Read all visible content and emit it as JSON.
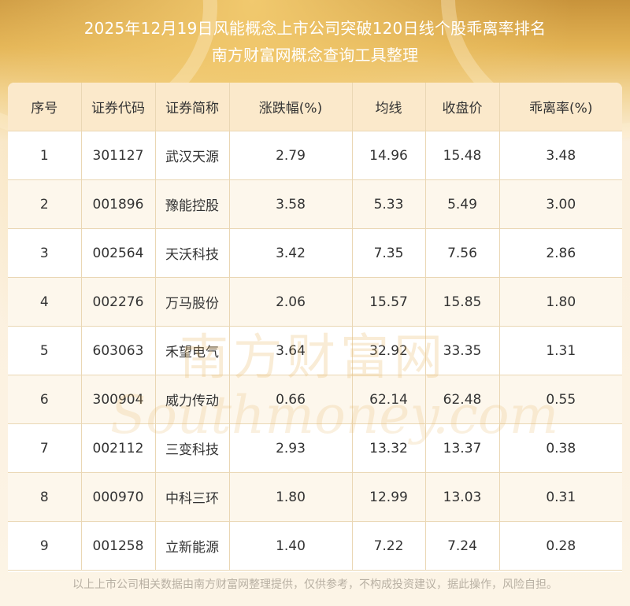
{
  "title_line1": "2025年12月19日风能概念上市公司突破120日线个股乖离率排名",
  "title_line2": "南方财富网概念查询工具整理",
  "table": {
    "headers": [
      "序号",
      "证券代码",
      "证券简称",
      "涨跌幅(%)",
      "均线",
      "收盘价",
      "乖离率(%)"
    ],
    "rows": [
      [
        "1",
        "301127",
        "武汉天源",
        "2.79",
        "14.96",
        "15.48",
        "3.48"
      ],
      [
        "2",
        "001896",
        "豫能控股",
        "3.58",
        "5.33",
        "5.49",
        "3.00"
      ],
      [
        "3",
        "002564",
        "天沃科技",
        "3.42",
        "7.35",
        "7.56",
        "2.86"
      ],
      [
        "4",
        "002276",
        "万马股份",
        "2.06",
        "15.57",
        "15.85",
        "1.80"
      ],
      [
        "5",
        "603063",
        "禾望电气",
        "3.64",
        "32.92",
        "33.35",
        "1.31"
      ],
      [
        "6",
        "300904",
        "威力传动",
        "0.66",
        "62.14",
        "62.48",
        "0.55"
      ],
      [
        "7",
        "002112",
        "三变科技",
        "2.93",
        "13.32",
        "13.37",
        "0.38"
      ],
      [
        "8",
        "000970",
        "中科三环",
        "1.80",
        "12.99",
        "13.03",
        "0.31"
      ],
      [
        "9",
        "001258",
        "立新能源",
        "1.40",
        "7.22",
        "7.24",
        "0.28"
      ]
    ]
  },
  "watermark": {
    "cn": "南方财富网",
    "en": "Southmoney.com"
  },
  "footer": "以上上市公司相关数据由南方财富网整理提供，仅供参考，不构成投资建议，据此操作，风险自担。"
}
